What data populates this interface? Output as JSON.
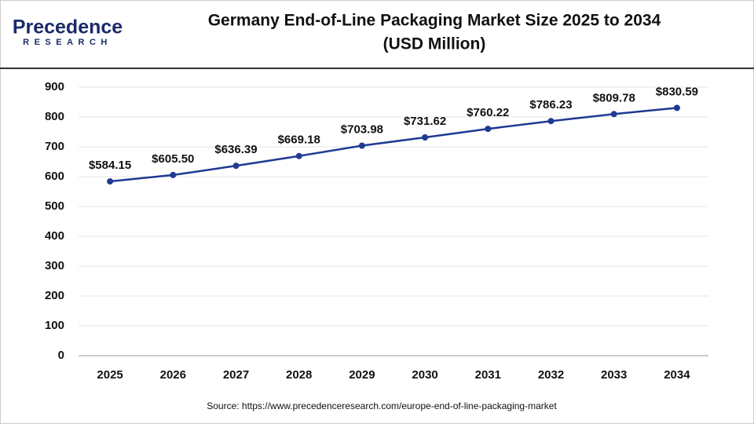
{
  "logo": {
    "name": "Precedence",
    "tagline": "RESEARCH"
  },
  "chart_data": {
    "type": "line",
    "title": [
      "Germany End-of-Line Packaging Market Size 2025 to 2034",
      "(USD Million)"
    ],
    "categories": [
      "2025",
      "2026",
      "2027",
      "2028",
      "2029",
      "2030",
      "2031",
      "2032",
      "2033",
      "2034"
    ],
    "values": [
      584.15,
      605.5,
      636.39,
      669.18,
      703.98,
      731.62,
      760.22,
      786.23,
      809.78,
      830.59
    ],
    "value_labels": [
      "$584.15",
      "$605.50",
      "$636.39",
      "$669.18",
      "$703.98",
      "$731.62",
      "$760.22",
      "$786.23",
      "$809.78",
      "$830.59"
    ],
    "color": "#1f3a93",
    "ylim": [
      0,
      900
    ],
    "yticks": [
      0,
      100,
      200,
      300,
      400,
      500,
      600,
      700,
      800,
      900
    ],
    "grid": true,
    "source": "Source: https://www.precedenceresearch.com/europe-end-of-line-packaging-market"
  }
}
